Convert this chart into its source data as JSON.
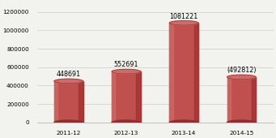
{
  "categories": [
    "2011-12",
    "2012-13",
    "2013-14",
    "2014-15"
  ],
  "values": [
    448691,
    552691,
    1081221,
    492812
  ],
  "labels": [
    "448691",
    "552691",
    "1081221",
    "(492812)"
  ],
  "bar_color_main": "#c0504d",
  "bar_color_dark": "#8b2f2f",
  "bar_color_right": "#a03030",
  "bar_color_light": "#d4736f",
  "bar_color_top": "#cc6b68",
  "ylim": [
    0,
    1300000
  ],
  "yticks": [
    0,
    200000,
    400000,
    600000,
    800000,
    1000000,
    1200000
  ],
  "background_color": "#f2f2ee",
  "grid_color": "#cccccc",
  "label_fontsize": 5.8,
  "tick_fontsize": 5.2,
  "bar_width": 0.5
}
